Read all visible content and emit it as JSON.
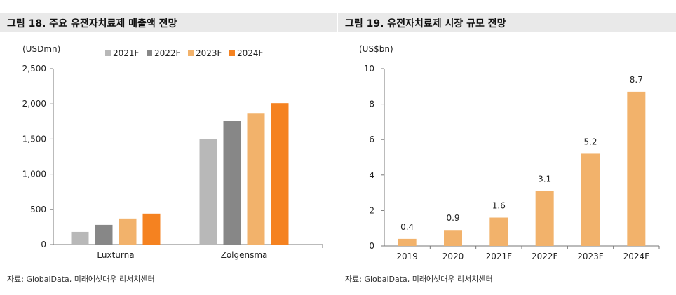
{
  "left": {
    "title": "그림 18. 주요 유전자치료제 매출액 전망",
    "source": "자료: GlobalData, 미래에셋대우 리서치센터",
    "colors": [
      "#b8b8b8",
      "#878787",
      "#f2b26b",
      "#f58220"
    ]
  },
  "right": {
    "title": "그림 19. 유전자치료제 시장 규모 전망",
    "source": "자료: GlobalData, 미래에셋대우 리서치센터",
    "bar_color": "#f2b26b"
  },
  "chart_data": [
    {
      "type": "bar",
      "title": "그림 18. 주요 유전자치료제 매출액 전망",
      "ylabel": "(USDmn)",
      "categories": [
        "Luxturna",
        "Zolgensma"
      ],
      "series": [
        {
          "name": "2021F",
          "values": [
            180,
            1500
          ]
        },
        {
          "name": "2022F",
          "values": [
            280,
            1760
          ]
        },
        {
          "name": "2023F",
          "values": [
            370,
            1870
          ]
        },
        {
          "name": "2024F",
          "values": [
            440,
            2010
          ]
        }
      ],
      "yticks": [
        "0",
        "500",
        "1,000",
        "1,500",
        "2,000",
        "2,500"
      ],
      "ylim": [
        0,
        2500
      ],
      "legend": "top-center",
      "grid": false
    },
    {
      "type": "bar",
      "title": "그림 19. 유전자치료제 시장 규모 전망",
      "ylabel": "(US$bn)",
      "categories": [
        "2019",
        "2020",
        "2021F",
        "2022F",
        "2023F",
        "2024F"
      ],
      "values": [
        0.4,
        0.9,
        1.6,
        3.1,
        5.2,
        8.7
      ],
      "data_labels": [
        "0.4",
        "0.9",
        "1.6",
        "3.1",
        "5.2",
        "8.7"
      ],
      "yticks": [
        "0",
        "2",
        "4",
        "6",
        "8",
        "10"
      ],
      "ylim": [
        0,
        10
      ],
      "grid": false
    }
  ]
}
